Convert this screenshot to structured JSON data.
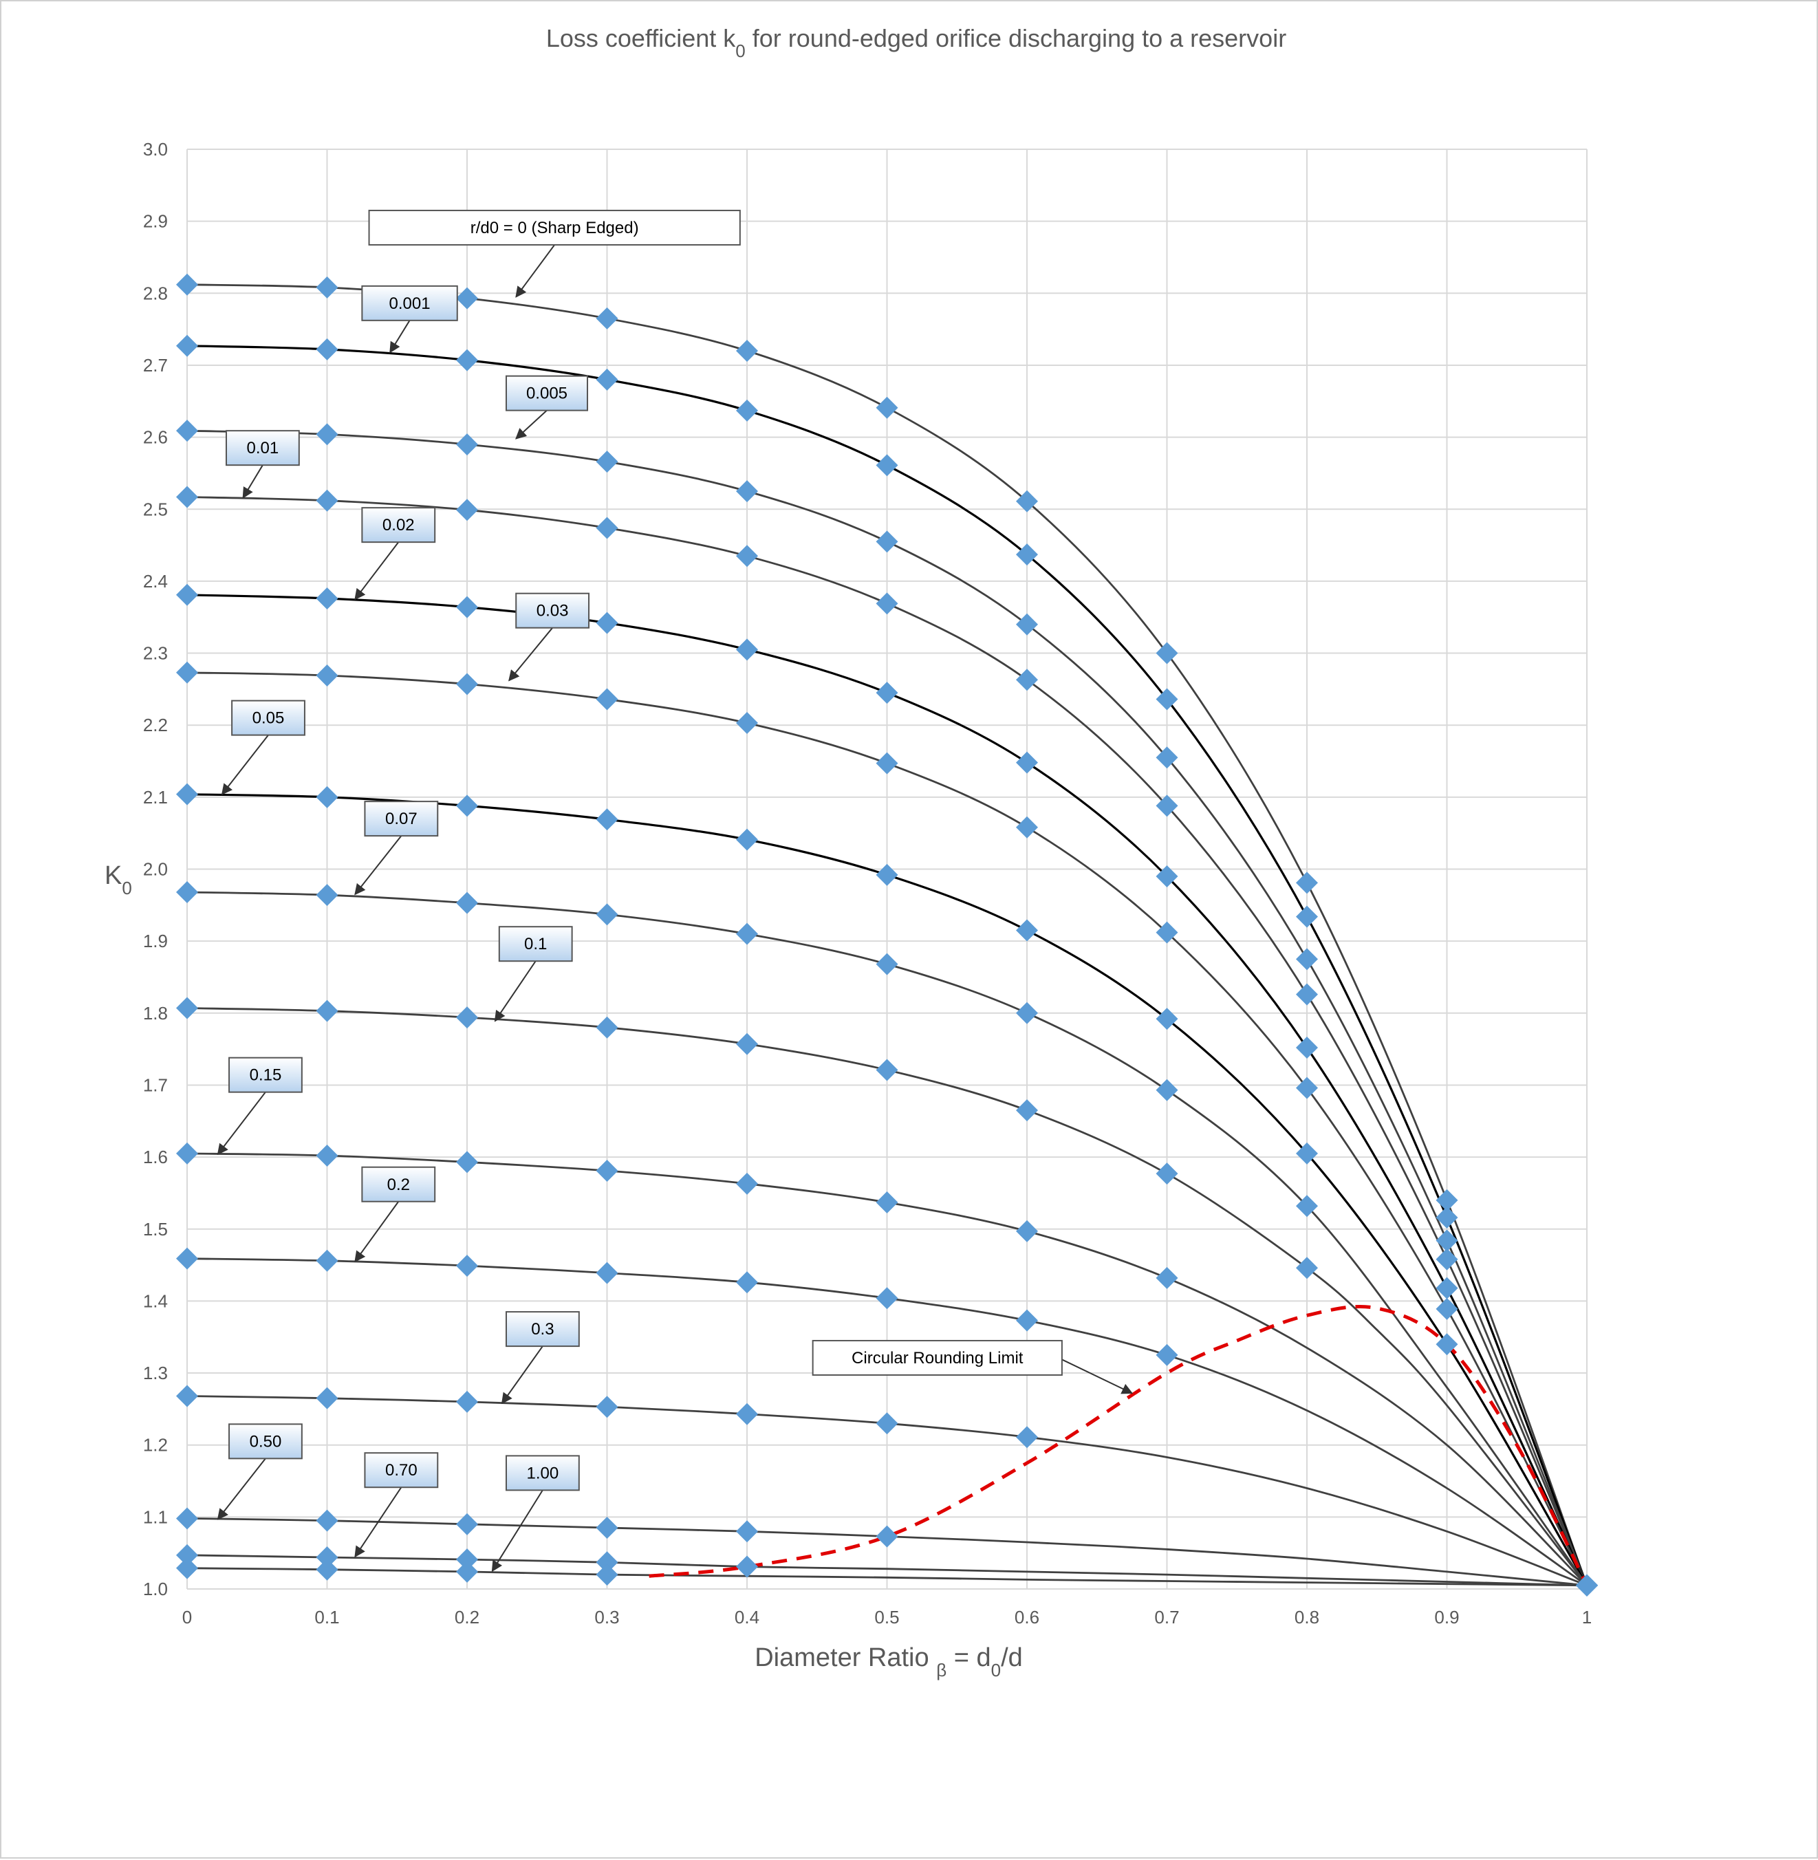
{
  "chart_data": {
    "type": "line",
    "title_main": "Loss coefficient k",
    "title_sub": "0",
    "title_rest": " for round-edged orifice discharging to a reservoir",
    "ylabel_main": "K",
    "ylabel_sub": "0",
    "xlabel_main": "Diameter Ratio ",
    "xlabel_beta": "β",
    "xlabel_eq": " = d",
    "xlabel_sub": "0",
    "xlabel_rest": "/d",
    "xlim": [
      0,
      1
    ],
    "ylim": [
      1.0,
      3.0
    ],
    "x_ticks": [
      "0",
      "0.1",
      "0.2",
      "0.3",
      "0.4",
      "0.5",
      "0.6",
      "0.7",
      "0.8",
      "0.9",
      "1"
    ],
    "y_ticks": [
      "1.0",
      "1.1",
      "1.2",
      "1.3",
      "1.4",
      "1.5",
      "1.6",
      "1.7",
      "1.8",
      "1.9",
      "2.0",
      "2.1",
      "2.2",
      "2.3",
      "2.4",
      "2.5",
      "2.6",
      "2.7",
      "2.8",
      "2.9",
      "3.0"
    ],
    "grid": true,
    "colors": {
      "marker": "#5b9bd5",
      "line": "#404040",
      "limit": "#e00000",
      "grid": "#d9d9d9"
    },
    "series": [
      {
        "name": "r/d0 = 0 (Sharp Edged)",
        "x": [
          0,
          0.1,
          0.2,
          0.3,
          0.4,
          0.5,
          0.6,
          0.7,
          0.8,
          0.9,
          1
        ],
        "y": [
          2.812,
          2.808,
          2.793,
          2.765,
          2.72,
          2.641,
          2.511,
          2.3,
          1.981,
          1.54,
          1.005
        ]
      },
      {
        "name": "0.001",
        "x": [
          0,
          0.1,
          0.2,
          0.3,
          0.4,
          0.5,
          0.6,
          0.7,
          0.8,
          0.9,
          1
        ],
        "y": [
          2.727,
          2.722,
          2.707,
          2.68,
          2.637,
          2.561,
          2.437,
          2.236,
          1.934,
          1.516,
          1.005
        ]
      },
      {
        "name": "0.005",
        "x": [
          0,
          0.1,
          0.2,
          0.3,
          0.4,
          0.5,
          0.6,
          0.7,
          0.8,
          0.9,
          1
        ],
        "y": [
          2.609,
          2.604,
          2.59,
          2.566,
          2.525,
          2.455,
          2.34,
          2.155,
          1.875,
          1.484,
          1.005
        ]
      },
      {
        "name": "0.01",
        "x": [
          0,
          0.1,
          0.2,
          0.3,
          0.4,
          0.5,
          0.6,
          0.7,
          0.8,
          0.9,
          1
        ],
        "y": [
          2.517,
          2.512,
          2.499,
          2.474,
          2.435,
          2.369,
          2.263,
          2.088,
          1.826,
          1.458,
          1.005
        ]
      },
      {
        "name": "0.02",
        "x": [
          0,
          0.1,
          0.2,
          0.3,
          0.4,
          0.5,
          0.6,
          0.7,
          0.8,
          0.9,
          1
        ],
        "y": [
          2.381,
          2.376,
          2.364,
          2.342,
          2.305,
          2.245,
          2.148,
          1.99,
          1.752,
          1.418,
          1.005
        ]
      },
      {
        "name": "0.03",
        "x": [
          0,
          0.1,
          0.2,
          0.3,
          0.4,
          0.5,
          0.6,
          0.7,
          0.8,
          0.9,
          1
        ],
        "y": [
          2.273,
          2.269,
          2.257,
          2.236,
          2.203,
          2.147,
          2.058,
          1.912,
          1.696,
          1.389,
          1.005
        ]
      },
      {
        "name": "0.05",
        "x": [
          0,
          0.1,
          0.2,
          0.3,
          0.4,
          0.5,
          0.6,
          0.7,
          0.8,
          0.9,
          1
        ],
        "y": [
          2.104,
          2.1,
          2.088,
          2.069,
          2.041,
          1.992,
          1.915,
          1.792,
          1.605,
          1.34,
          1.005
        ]
      },
      {
        "name": "0.07",
        "x": [
          0,
          0.1,
          0.2,
          0.3,
          0.4,
          0.5,
          0.6,
          0.7,
          0.8,
          0.9
        ],
        "y": [
          1.968,
          1.964,
          1.953,
          1.937,
          1.91,
          1.868,
          1.8,
          1.693,
          1.532,
          null
        ]
      },
      {
        "name": "0.1",
        "x": [
          0,
          0.1,
          0.2,
          0.3,
          0.4,
          0.5,
          0.6,
          0.7,
          0.8
        ],
        "y": [
          1.807,
          1.803,
          1.794,
          1.78,
          1.757,
          1.721,
          1.665,
          1.577,
          1.446
        ]
      },
      {
        "name": "0.15",
        "x": [
          0,
          0.1,
          0.2,
          0.3,
          0.4,
          0.5,
          0.6,
          0.7
        ],
        "y": [
          1.605,
          1.602,
          1.593,
          1.581,
          1.563,
          1.537,
          1.497,
          1.432
        ]
      },
      {
        "name": "0.2",
        "x": [
          0,
          0.1,
          0.2,
          0.3,
          0.4,
          0.5,
          0.6,
          0.7
        ],
        "y": [
          1.459,
          1.456,
          1.449,
          1.439,
          1.426,
          1.404,
          1.373,
          1.325
        ]
      },
      {
        "name": "0.3",
        "x": [
          0,
          0.1,
          0.2,
          0.3,
          0.4,
          0.5,
          0.6
        ],
        "y": [
          1.268,
          1.265,
          1.26,
          1.253,
          1.243,
          1.23,
          1.211
        ]
      },
      {
        "name": "0.50",
        "x": [
          0,
          0.1,
          0.2,
          0.3,
          0.4,
          0.5
        ],
        "y": [
          1.098,
          1.095,
          1.09,
          1.085,
          1.08,
          1.073
        ]
      },
      {
        "name": "0.70",
        "x": [
          0,
          0.1,
          0.2,
          0.3,
          0.4
        ],
        "y": [
          1.047,
          1.044,
          1.041,
          1.037,
          1.031
        ]
      },
      {
        "name": "1.00",
        "x": [
          0,
          0.1,
          0.2,
          0.3
        ],
        "y": [
          1.029,
          1.027,
          1.024,
          1.02
        ]
      }
    ],
    "tails": [
      {
        "series": "0.07",
        "x": [
          0.8,
          0.9,
          1
        ],
        "y": [
          1.532,
          1.28,
          1.005
        ]
      },
      {
        "series": "0.1",
        "x": [
          0.8,
          0.85,
          0.9,
          1
        ],
        "y": [
          1.446,
          1.36,
          1.255,
          1.005
        ]
      },
      {
        "series": "0.15",
        "x": [
          0.7,
          0.8,
          0.9,
          1
        ],
        "y": [
          1.432,
          1.335,
          1.2,
          1.005
        ]
      },
      {
        "series": "0.2",
        "x": [
          0.7,
          0.8,
          0.9,
          1
        ],
        "y": [
          1.325,
          1.248,
          1.14,
          1.005
        ]
      },
      {
        "series": "0.3",
        "x": [
          0.6,
          0.7,
          0.8,
          0.9,
          1
        ],
        "y": [
          1.211,
          1.183,
          1.14,
          1.08,
          1.005
        ]
      },
      {
        "series": "0.50",
        "x": [
          0.5,
          0.6,
          0.7,
          0.8,
          0.9,
          1
        ],
        "y": [
          1.073,
          1.065,
          1.055,
          1.042,
          1.024,
          1.005
        ]
      },
      {
        "series": "0.70",
        "x": [
          0.4,
          0.5,
          0.6,
          0.7,
          0.8,
          0.9,
          1
        ],
        "y": [
          1.031,
          1.028,
          1.024,
          1.02,
          1.015,
          1.01,
          1.005
        ]
      },
      {
        "series": "1.00",
        "x": [
          0.3,
          0.4,
          0.5,
          0.6,
          0.7,
          0.8,
          0.9,
          1
        ],
        "y": [
          1.02,
          1.018,
          1.016,
          1.013,
          1.011,
          1.009,
          1.007,
          1.005
        ]
      }
    ],
    "limit_curve": {
      "name": "Circular Rounding Limit",
      "x": [
        0.33,
        0.4,
        0.5,
        0.6,
        0.7,
        0.75,
        0.8,
        0.85,
        0.9,
        0.95,
        1
      ],
      "y": [
        1.018,
        1.031,
        1.073,
        1.175,
        1.3,
        1.345,
        1.38,
        1.39,
        1.34,
        1.2,
        1.005
      ]
    },
    "annotations": [
      {
        "text": "r/d0 = 0 (Sharp Edged)",
        "box_x": 0.13,
        "box_y": 2.915,
        "w": 0.265,
        "tip_x": 0.235,
        "tip_y": 2.795,
        "style": "plain"
      },
      {
        "text": "0.001",
        "box_x": 0.125,
        "box_y": 2.81,
        "w": 0.068,
        "tip_x": 0.145,
        "tip_y": 2.718,
        "style": "blue"
      },
      {
        "text": "0.005",
        "box_x": 0.228,
        "box_y": 2.685,
        "w": 0.058,
        "tip_x": 0.235,
        "tip_y": 2.598,
        "style": "blue"
      },
      {
        "text": "0.01",
        "box_x": 0.028,
        "box_y": 2.609,
        "w": 0.052,
        "tip_x": 0.04,
        "tip_y": 2.516,
        "style": "blue"
      },
      {
        "text": "0.02",
        "box_x": 0.125,
        "box_y": 2.502,
        "w": 0.052,
        "tip_x": 0.12,
        "tip_y": 2.375,
        "style": "blue"
      },
      {
        "text": "0.03",
        "box_x": 0.235,
        "box_y": 2.383,
        "w": 0.052,
        "tip_x": 0.23,
        "tip_y": 2.262,
        "style": "blue"
      },
      {
        "text": "0.05",
        "box_x": 0.032,
        "box_y": 2.234,
        "w": 0.052,
        "tip_x": 0.025,
        "tip_y": 2.104,
        "style": "blue"
      },
      {
        "text": "0.07",
        "box_x": 0.127,
        "box_y": 2.094,
        "w": 0.052,
        "tip_x": 0.12,
        "tip_y": 1.965,
        "style": "blue"
      },
      {
        "text": "0.1",
        "box_x": 0.223,
        "box_y": 1.92,
        "w": 0.052,
        "tip_x": 0.22,
        "tip_y": 1.789,
        "style": "blue"
      },
      {
        "text": "0.15",
        "box_x": 0.03,
        "box_y": 1.738,
        "w": 0.052,
        "tip_x": 0.022,
        "tip_y": 1.604,
        "style": "blue"
      },
      {
        "text": "0.2",
        "box_x": 0.125,
        "box_y": 1.586,
        "w": 0.052,
        "tip_x": 0.12,
        "tip_y": 1.455,
        "style": "blue"
      },
      {
        "text": "0.3",
        "box_x": 0.228,
        "box_y": 1.385,
        "w": 0.052,
        "tip_x": 0.225,
        "tip_y": 1.258,
        "style": "blue"
      },
      {
        "text": "0.50",
        "box_x": 0.03,
        "box_y": 1.229,
        "w": 0.052,
        "tip_x": 0.022,
        "tip_y": 1.097,
        "style": "blue"
      },
      {
        "text": "0.70",
        "box_x": 0.127,
        "box_y": 1.189,
        "w": 0.052,
        "tip_x": 0.12,
        "tip_y": 1.045,
        "style": "blue"
      },
      {
        "text": "1.00",
        "box_x": 0.228,
        "box_y": 1.185,
        "w": 0.052,
        "tip_x": 0.218,
        "tip_y": 1.025,
        "style": "blue"
      },
      {
        "text": "Circular Rounding Limit",
        "box_x": 0.447,
        "box_y": 1.345,
        "w": 0.178,
        "tip_x": 0.675,
        "tip_y": 1.272,
        "style": "plain"
      }
    ]
  }
}
